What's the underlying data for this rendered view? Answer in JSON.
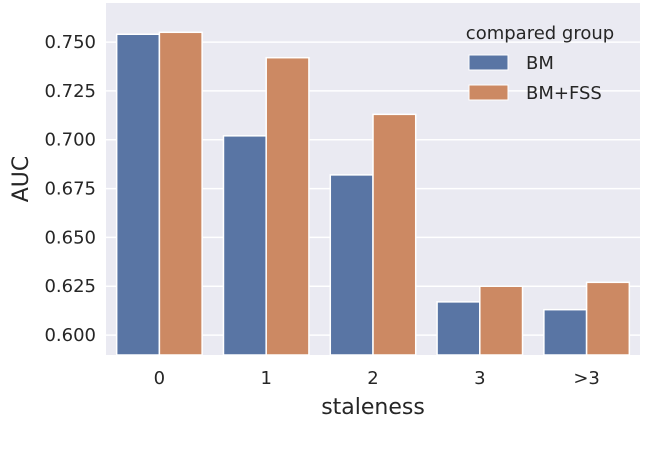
{
  "chart_data": {
    "type": "bar",
    "title": "",
    "xlabel": "staleness",
    "ylabel": "AUC",
    "categories": [
      "0",
      "1",
      "2",
      "3",
      ">3"
    ],
    "series": [
      {
        "name": "BM",
        "color": "#5975a4",
        "values": [
          0.754,
          0.702,
          0.682,
          0.617,
          0.613
        ]
      },
      {
        "name": "BM+FSS",
        "color": "#cc8963",
        "values": [
          0.755,
          0.742,
          0.713,
          0.625,
          0.627
        ]
      }
    ],
    "ylim": [
      0.5898,
      0.77
    ],
    "yticks": [
      0.6,
      0.625,
      0.65,
      0.675,
      0.7,
      0.725,
      0.75
    ],
    "ytick_labels": [
      "0.600",
      "0.625",
      "0.650",
      "0.675",
      "0.700",
      "0.725",
      "0.750"
    ],
    "grid": true,
    "background": "#eaeaf2",
    "legend": {
      "title": "compared group",
      "position": "top-right"
    }
  }
}
